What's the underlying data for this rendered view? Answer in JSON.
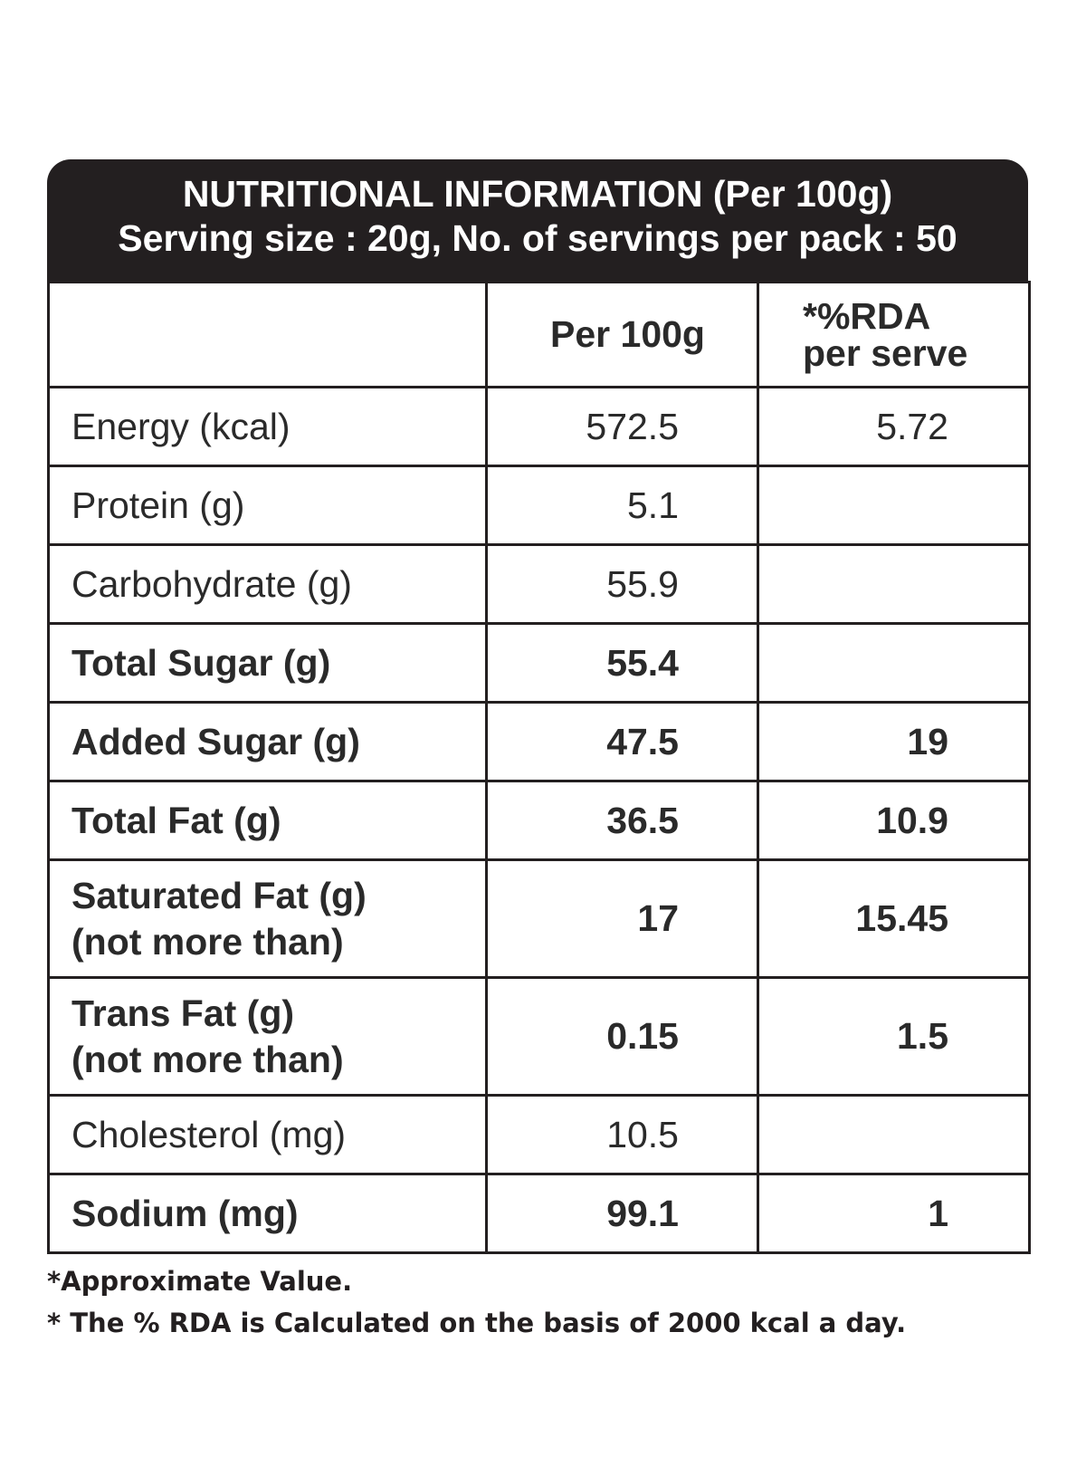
{
  "header": {
    "title": "NUTRITIONAL INFORMATION (Per 100g)",
    "subtitle": "Serving size : 20g, No. of servings per pack : 50"
  },
  "table": {
    "columns": {
      "nutrient": "",
      "per_100g": "Per 100g",
      "rda_line1": "*%RDA",
      "rda_line2": "per serve"
    },
    "rows": [
      {
        "name": "Energy (kcal)",
        "name_line2": "",
        "per_100g": "572.5",
        "rda": "5.72",
        "bold": false
      },
      {
        "name": "Protein (g)",
        "name_line2": "",
        "per_100g": "5.1",
        "rda": "",
        "bold": false
      },
      {
        "name": "Carbohydrate (g)",
        "name_line2": "",
        "per_100g": "55.9",
        "rda": "",
        "bold": false
      },
      {
        "name": "Total Sugar (g)",
        "name_line2": "",
        "per_100g": "55.4",
        "rda": "",
        "bold": true
      },
      {
        "name": "Added Sugar (g)",
        "name_line2": "",
        "per_100g": "47.5",
        "rda": "19",
        "bold": true
      },
      {
        "name": "Total Fat (g)",
        "name_line2": "",
        "per_100g": "36.5",
        "rda": "10.9",
        "bold": true
      },
      {
        "name": "Saturated Fat (g)",
        "name_line2": "(not more than)",
        "per_100g": "17",
        "rda": "15.45",
        "bold": true
      },
      {
        "name": "Trans Fat (g)",
        "name_line2": "(not more than)",
        "per_100g": "0.15",
        "rda": "1.5",
        "bold": true
      },
      {
        "name": "Cholesterol (mg)",
        "name_line2": "",
        "per_100g": "10.5",
        "rda": "",
        "bold": false
      },
      {
        "name": "Sodium (mg)",
        "name_line2": "",
        "per_100g": "99.1",
        "rda": "1",
        "bold": true
      }
    ]
  },
  "footnotes": [
    "*Approximate Value.",
    "* The % RDA is Calculated on the basis of 2000 kcal a day."
  ]
}
